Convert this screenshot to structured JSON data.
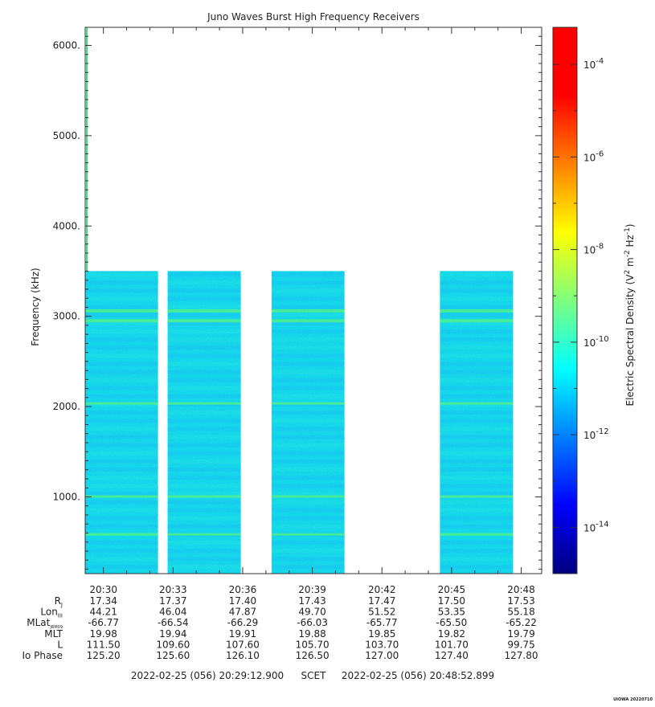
{
  "chart_data": {
    "type": "heatmap",
    "title": "Juno Waves Burst High Frequency Receivers",
    "ylabel": "Frequency (kHz)",
    "ylim": [
      150,
      6200
    ],
    "y_ticks": [
      {
        "value": 1000,
        "label": "1000."
      },
      {
        "value": 2000,
        "label": "2000."
      },
      {
        "value": 3000,
        "label": "3000."
      },
      {
        "value": 4000,
        "label": "4000."
      },
      {
        "value": 5000,
        "label": "5000."
      },
      {
        "value": 6000,
        "label": "6000."
      }
    ],
    "x_ticks": [
      "20:30",
      "20:33",
      "20:36",
      "20:39",
      "20:42",
      "20:45",
      "20:48"
    ],
    "data_top_khz": 3500,
    "data_segments": [
      {
        "start": "20:29:13",
        "end": "20:32:21"
      },
      {
        "start": "20:32:46",
        "end": "20:35:55"
      },
      {
        "start": "20:37:15",
        "end": "20:40:23"
      },
      {
        "start": "20:44:30",
        "end": "20:47:39"
      }
    ],
    "emission_lines_khz": [
      3060,
      2950,
      2030,
      1000,
      580
    ],
    "colorbar": {
      "label": "Electric Spectral Density (V^2 m^-2 Hz^-1)",
      "label_base": "Electric Spectral Density (V",
      "label_exp1": "2",
      "label_mid": " m",
      "label_exp2": "-2",
      "label_mid2": " Hz",
      "label_exp3": "-1",
      "label_end": ")",
      "log_min": -15,
      "log_max": -3.2,
      "ticks": [
        {
          "exp": -4,
          "base": "10",
          "sup": "-4"
        },
        {
          "exp": -6,
          "base": "10",
          "sup": "-6"
        },
        {
          "exp": -8,
          "base": "10",
          "sup": "-8"
        },
        {
          "exp": -10,
          "base": "10",
          "sup": "-10"
        },
        {
          "exp": -12,
          "base": "10",
          "sup": "-12"
        },
        {
          "exp": -14,
          "base": "10",
          "sup": "-14"
        }
      ],
      "colors": [
        "#00007f",
        "#0000ff",
        "#007fff",
        "#00ffff",
        "#7fff7f",
        "#ffff00",
        "#ff7f00",
        "#ff0000",
        "#ff0000"
      ]
    },
    "ephemeris": {
      "rows": [
        {
          "label": "R",
          "sub": "J",
          "values": [
            "17.34",
            "17.37",
            "17.40",
            "17.43",
            "17.47",
            "17.50",
            "17.53"
          ]
        },
        {
          "label": "Lon",
          "sub": "III",
          "values": [
            "44.21",
            "46.04",
            "47.87",
            "49.70",
            "51.52",
            "53.35",
            "55.18"
          ]
        },
        {
          "label": "MLat",
          "sub": "JRM09",
          "values": [
            "-66.77",
            "-66.54",
            "-66.29",
            "-66.03",
            "-65.77",
            "-65.50",
            "-65.22"
          ]
        },
        {
          "label": "MLT",
          "sub": "",
          "values": [
            "19.98",
            "19.94",
            "19.91",
            "19.88",
            "19.85",
            "19.82",
            "19.79"
          ]
        },
        {
          "label": "L",
          "sub": "",
          "values": [
            "111.50",
            "109.60",
            "107.60",
            "105.70",
            "103.70",
            "101.70",
            "99.75"
          ]
        },
        {
          "label": "Io Phase",
          "sub": "",
          "values": [
            "125.20",
            "125.60",
            "126.10",
            "126.50",
            "127.00",
            "127.40",
            "127.80"
          ]
        }
      ]
    },
    "time_range": {
      "start": "2022-02-25 (056) 20:29:12.900",
      "frame": "SCET",
      "end": "2022-02-25 (056) 20:48:52.899"
    },
    "footer_tag": "UIOWA 20220710"
  }
}
